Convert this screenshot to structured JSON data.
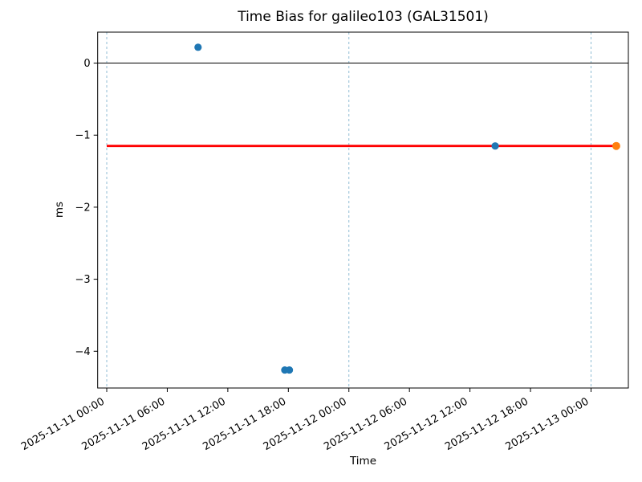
{
  "figure": {
    "title": "Time Bias for galileo103 (GAL31501)",
    "xlabel": "Time",
    "ylabel": "ms"
  },
  "chart_data": {
    "type": "scatter",
    "title": "Time Bias for galileo103 (GAL31501)",
    "xlabel": "Time",
    "ylabel": "ms",
    "legend": "none",
    "grid": "vertical day-boundary dashed lines only",
    "x_axis": {
      "unit": "hours since 2025-11-11 00:00",
      "lim": [
        -0.9,
        51.7
      ],
      "tick_rotation_deg": 30,
      "ticks": [
        {
          "t": 0,
          "label": "2025-11-11 00:00"
        },
        {
          "t": 6,
          "label": "2025-11-11 06:00"
        },
        {
          "t": 12,
          "label": "2025-11-11 12:00"
        },
        {
          "t": 18,
          "label": "2025-11-11 18:00"
        },
        {
          "t": 24,
          "label": "2025-11-12 00:00"
        },
        {
          "t": 30,
          "label": "2025-11-12 06:00"
        },
        {
          "t": 36,
          "label": "2025-11-12 12:00"
        },
        {
          "t": 42,
          "label": "2025-11-12 18:00"
        },
        {
          "t": 48,
          "label": "2025-11-13 00:00"
        }
      ]
    },
    "y_axis": {
      "lim": [
        -4.51,
        0.43
      ],
      "ticks": [
        0,
        -1,
        -2,
        -3,
        -4
      ]
    },
    "series": [
      {
        "name": "time-bias-observations",
        "color": "#1f77b4",
        "marker": "circle",
        "marker_radius": 4.6,
        "points": [
          {
            "time": "2025-11-11 09:00",
            "t": 9.05,
            "value_ms": 0.22
          },
          {
            "time": "2025-11-11 17:40",
            "t": 17.65,
            "value_ms": -4.26
          },
          {
            "time": "2025-11-11 18:05",
            "t": 18.1,
            "value_ms": -4.26
          },
          {
            "time": "2025-11-12 14:30",
            "t": 38.5,
            "value_ms": -1.15
          }
        ]
      },
      {
        "name": "latest-observation",
        "color": "#ff7f0e",
        "marker": "circle",
        "marker_radius": 5,
        "points": [
          {
            "time": "2025-11-13 02:30",
            "t": 50.5,
            "value_ms": -1.15
          }
        ]
      }
    ],
    "reference_line": {
      "name": "current-bias-line",
      "value_ms": -1.15,
      "t_start": 0,
      "t_end": 50.5,
      "color": "#ff0000",
      "width": 2.8
    },
    "zero_line": {
      "value_ms": 0,
      "color": "#000000"
    },
    "day_gridlines": {
      "t_values": [
        0,
        24,
        48
      ],
      "color": "#8fbcd4",
      "style": "dashed"
    },
    "axes_color": "#000000"
  }
}
